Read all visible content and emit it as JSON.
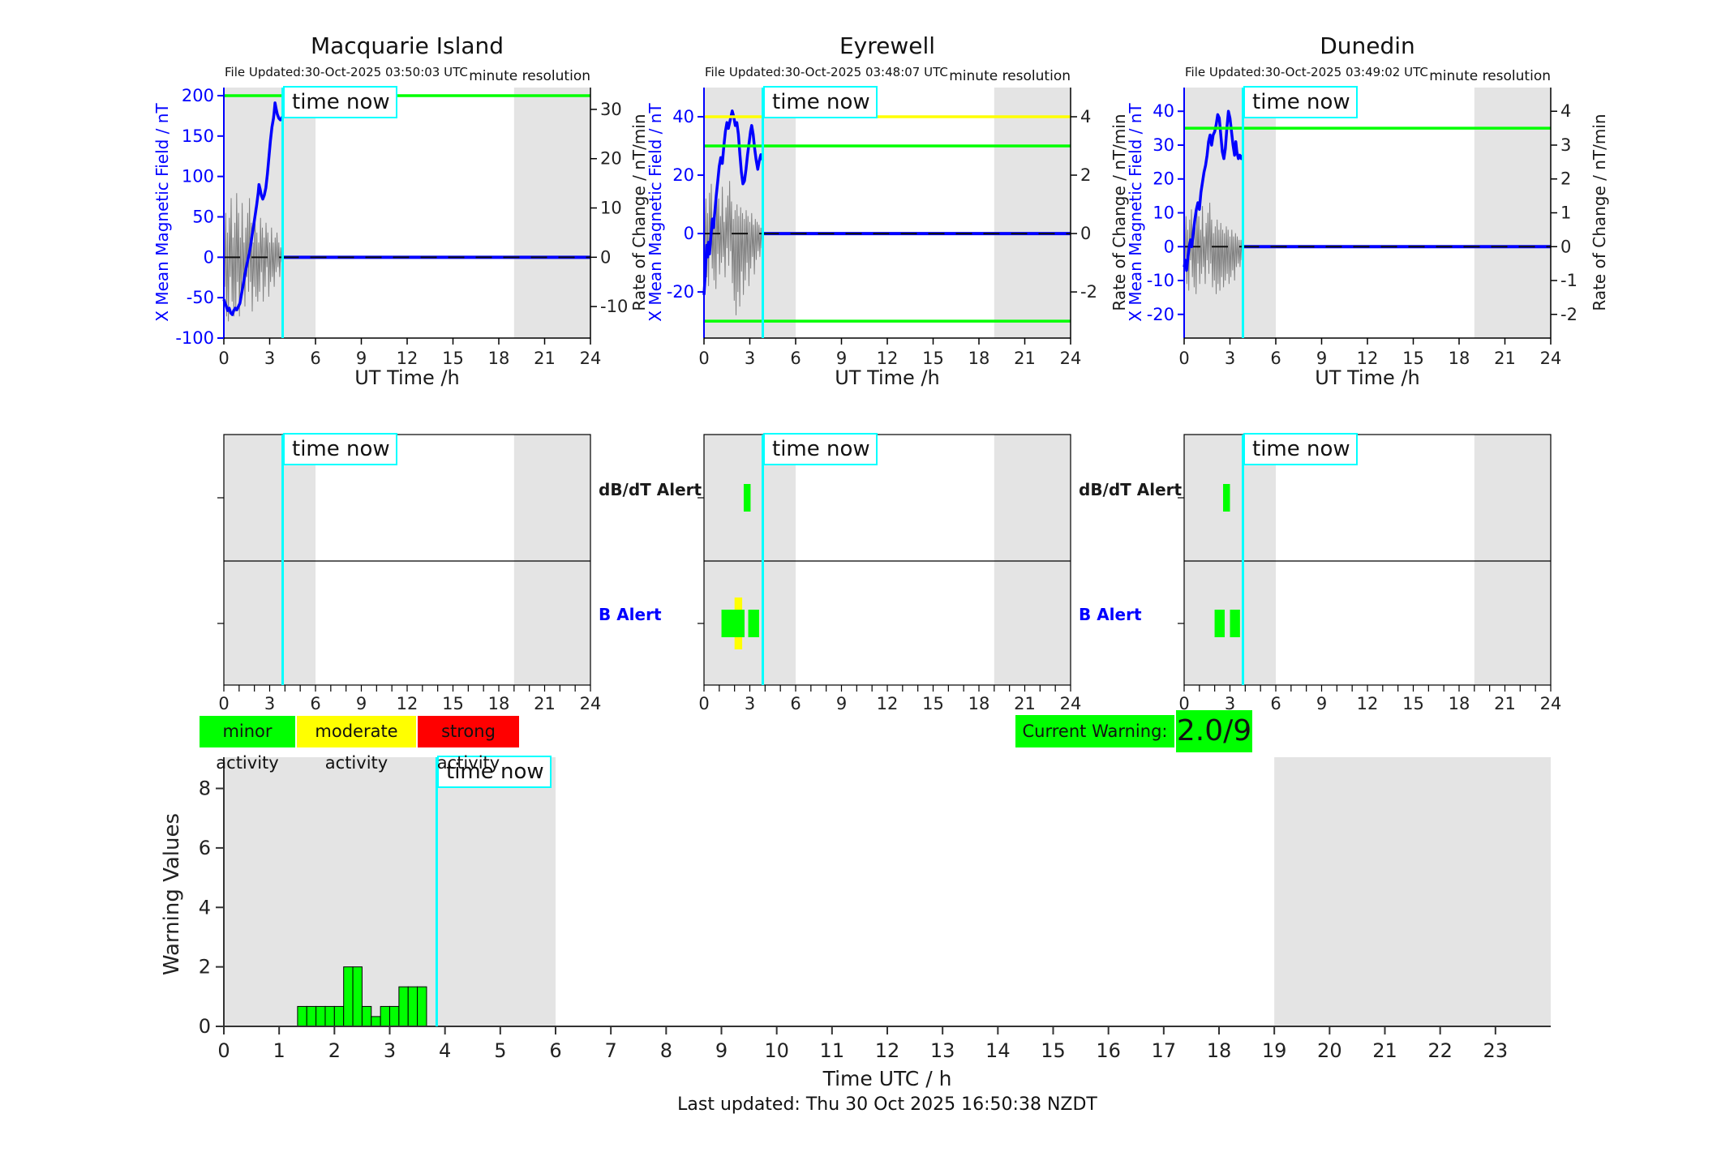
{
  "labels": {
    "time_now": "time now",
    "ut_time": "UT Time /h",
    "alert_dbdt": "dB/dT Alert",
    "alert_b": "B Alert",
    "last_updated": "Last updated: Thu 30 Oct 2025 16:50:38 NZDT"
  },
  "legend": {
    "minor": {
      "label": "minor activity",
      "color": "#00FF00"
    },
    "moderate": {
      "label": "moderate activity",
      "color": "#FFFF00"
    },
    "strong": {
      "label": "strong activity",
      "color": "#FF0000"
    }
  },
  "current_warning": {
    "label": "Current Warning:",
    "value": "2.0/9",
    "color": "#00FF00"
  },
  "colors": {
    "field_line": "#0000FF",
    "rate_line": "#808080",
    "band": "#E4E4E4",
    "time_now": "#00FFFF",
    "zero_dash": "#111111",
    "minor": "#00FF00",
    "moderate": "#FFFF00",
    "strong": "#FF0000"
  },
  "stations": [
    {
      "title": "Macquarie Island",
      "file_updated": "File Updated:30-Oct-2025 03:50:03 UTC",
      "resolution": "minute resolution",
      "ylabel_left": "X Mean Magnetic Field / nT",
      "ylabel_right": "Rate of Change / nT/min"
    },
    {
      "title": "Eyrewell",
      "file_updated": "File Updated:30-Oct-2025 03:48:07 UTC",
      "resolution": "minute resolution",
      "ylabel_left": "X Mean Magnetic Field / nT",
      "ylabel_right": "Rate of Change / nT/min"
    },
    {
      "title": "Dunedin",
      "file_updated": "File Updated:30-Oct-2025 03:49:02 UTC",
      "resolution": "minute resolution",
      "ylabel_left": "X Mean Magnetic Field / nT",
      "ylabel_right": "Rate of Change / nT/min"
    }
  ],
  "chart_data": [
    {
      "type": "line",
      "station": "Macquarie Island",
      "xlabel": "UT Time /h",
      "xlim": [
        0,
        24
      ],
      "xticks": [
        0,
        3,
        6,
        9,
        12,
        15,
        18,
        21,
        24
      ],
      "ylim": [
        -100,
        210
      ],
      "yticks_left": [
        200,
        150,
        100,
        50,
        0,
        -50,
        -100
      ],
      "yticks_right": [
        30,
        20,
        10,
        0,
        -10
      ],
      "right_to_left_factor": 6.1,
      "shading": [
        [
          0,
          6
        ],
        [
          19,
          24
        ]
      ],
      "time_now": 3.85,
      "thresholds": [
        {
          "value": 200,
          "color": "#00FF00"
        }
      ],
      "forecast_value": 0,
      "series_field_nT": [
        [
          0,
          -52
        ],
        [
          0.08,
          -57
        ],
        [
          0.15,
          -60
        ],
        [
          0.25,
          -66
        ],
        [
          0.35,
          -63
        ],
        [
          0.45,
          -69
        ],
        [
          0.55,
          -71
        ],
        [
          0.65,
          -66
        ],
        [
          0.75,
          -63
        ],
        [
          0.85,
          -65
        ],
        [
          0.95,
          -61
        ],
        [
          1.05,
          -57
        ],
        [
          1.15,
          -46
        ],
        [
          1.25,
          -36
        ],
        [
          1.35,
          -25
        ],
        [
          1.45,
          -14
        ],
        [
          1.55,
          -5
        ],
        [
          1.65,
          4
        ],
        [
          1.75,
          14
        ],
        [
          1.85,
          27
        ],
        [
          1.95,
          39
        ],
        [
          2.05,
          52
        ],
        [
          2.15,
          65
        ],
        [
          2.25,
          80
        ],
        [
          2.3,
          90
        ],
        [
          2.38,
          84
        ],
        [
          2.45,
          77
        ],
        [
          2.55,
          72
        ],
        [
          2.65,
          77
        ],
        [
          2.75,
          86
        ],
        [
          2.85,
          103
        ],
        [
          2.95,
          124
        ],
        [
          3.05,
          144
        ],
        [
          3.15,
          161
        ],
        [
          3.25,
          172
        ],
        [
          3.3,
          180
        ],
        [
          3.35,
          191
        ],
        [
          3.42,
          184
        ],
        [
          3.5,
          177
        ],
        [
          3.6,
          172
        ],
        [
          3.7,
          170
        ],
        [
          3.85,
          174
        ]
      ],
      "series_rate": {
        "t0": 0,
        "dt": 0.06,
        "v": [
          3,
          -6,
          9,
          -12,
          5,
          -13,
          8,
          -4,
          12,
          -9,
          4,
          -12,
          7,
          -11,
          13,
          -5,
          9,
          -12,
          4,
          -8,
          11,
          -6,
          3,
          -10,
          6,
          -4,
          9,
          -7,
          12,
          -5,
          7,
          -11,
          3,
          -6,
          10,
          -8,
          5,
          -9,
          3,
          -7,
          8,
          -3,
          6,
          -9,
          4,
          -6,
          7,
          -2,
          5,
          -8,
          3,
          -5,
          6,
          -4,
          3,
          -6,
          4,
          -3,
          5,
          -2,
          3,
          -4,
          2,
          -1
        ]
      }
    },
    {
      "type": "line",
      "station": "Eyrewell",
      "xlabel": "UT Time /h",
      "xlim": [
        0,
        24
      ],
      "xticks": [
        0,
        3,
        6,
        9,
        12,
        15,
        18,
        21,
        24
      ],
      "ylim": [
        -35.8,
        50
      ],
      "yticks_left": [
        40,
        20,
        0,
        -20
      ],
      "yticks_right": [
        4,
        2,
        0,
        -2
      ],
      "right_to_left_factor": 10,
      "shading": [
        [
          0,
          6
        ],
        [
          19,
          24
        ]
      ],
      "time_now": 3.85,
      "thresholds": [
        {
          "value": 40,
          "color": "#FFFF00"
        },
        {
          "value": 30,
          "color": "#00FF00"
        },
        {
          "value": -30,
          "color": "#00FF00"
        }
      ],
      "forecast_value": 0,
      "series_field_nT": [
        [
          0,
          -21
        ],
        [
          0.06,
          -16
        ],
        [
          0.12,
          -9
        ],
        [
          0.18,
          -4
        ],
        [
          0.25,
          -8
        ],
        [
          0.3,
          -3
        ],
        [
          0.36,
          -7
        ],
        [
          0.45,
          -1
        ],
        [
          0.55,
          5
        ],
        [
          0.62,
          2
        ],
        [
          0.7,
          7
        ],
        [
          0.8,
          13
        ],
        [
          0.9,
          18
        ],
        [
          1,
          23
        ],
        [
          1.1,
          26
        ],
        [
          1.2,
          24
        ],
        [
          1.3,
          30
        ],
        [
          1.4,
          35
        ],
        [
          1.5,
          38
        ],
        [
          1.6,
          36
        ],
        [
          1.72,
          39
        ],
        [
          1.85,
          42
        ],
        [
          1.95,
          40
        ],
        [
          2.05,
          37
        ],
        [
          2.15,
          38
        ],
        [
          2.25,
          34
        ],
        [
          2.35,
          27
        ],
        [
          2.45,
          21
        ],
        [
          2.55,
          17
        ],
        [
          2.65,
          18
        ],
        [
          2.75,
          22
        ],
        [
          2.85,
          27
        ],
        [
          2.95,
          31
        ],
        [
          3.05,
          35
        ],
        [
          3.12,
          37
        ],
        [
          3.22,
          34
        ],
        [
          3.32,
          29
        ],
        [
          3.42,
          25
        ],
        [
          3.52,
          22
        ],
        [
          3.62,
          25
        ],
        [
          3.72,
          27
        ],
        [
          3.85,
          25
        ]
      ],
      "series_rate": {
        "t0": 0,
        "dt": 0.06,
        "v": [
          0.3,
          -0.8,
          1.2,
          -1.5,
          0.7,
          -1.8,
          1.4,
          -0.6,
          1.7,
          -1.2,
          0.5,
          -1.6,
          1,
          -1.9,
          1.5,
          -0.7,
          1.2,
          -1.4,
          0.6,
          -1,
          1.6,
          -0.8,
          0.4,
          -1.5,
          0.9,
          -0.5,
          1.3,
          -1.1,
          1.8,
          -0.6,
          1.1,
          -1.7,
          0.5,
          -2.3,
          0.8,
          -2.8,
          1,
          -2,
          0.6,
          -2.5,
          0.9,
          -1.3,
          0.7,
          -2.1,
          0.5,
          -1.6,
          0.8,
          -1,
          0.6,
          -1.8,
          0.4,
          -1.2,
          0.7,
          -0.8,
          0.3,
          -1.4,
          0.5,
          -0.9,
          0.4,
          -0.6,
          0.3,
          -0.8,
          0.2,
          -0.5
        ]
      }
    },
    {
      "type": "line",
      "station": "Dunedin",
      "xlabel": "UT Time /h",
      "xlim": [
        0,
        24
      ],
      "xticks": [
        0,
        3,
        6,
        9,
        12,
        15,
        18,
        21,
        24
      ],
      "ylim": [
        -27,
        47
      ],
      "yticks_left": [
        40,
        30,
        20,
        10,
        0,
        -10,
        -20
      ],
      "yticks_right": [
        4,
        3,
        2,
        1,
        0,
        -1,
        -2
      ],
      "right_to_left_factor": 10,
      "shading": [
        [
          0,
          6
        ],
        [
          19,
          24
        ]
      ],
      "time_now": 3.85,
      "thresholds": [
        {
          "value": 35,
          "color": "#00FF00"
        }
      ],
      "forecast_value": 0,
      "series_field_nT": [
        [
          0,
          -6
        ],
        [
          0.08,
          -4
        ],
        [
          0.16,
          -7
        ],
        [
          0.25,
          -3
        ],
        [
          0.33,
          0
        ],
        [
          0.42,
          2
        ],
        [
          0.5,
          0
        ],
        [
          0.6,
          4
        ],
        [
          0.7,
          8
        ],
        [
          0.8,
          11
        ],
        [
          0.9,
          13
        ],
        [
          1,
          11
        ],
        [
          1.1,
          16
        ],
        [
          1.2,
          19
        ],
        [
          1.3,
          22
        ],
        [
          1.4,
          24
        ],
        [
          1.5,
          27
        ],
        [
          1.6,
          31
        ],
        [
          1.7,
          33
        ],
        [
          1.8,
          30
        ],
        [
          1.9,
          33
        ],
        [
          2,
          34
        ],
        [
          2.1,
          36
        ],
        [
          2.2,
          39
        ],
        [
          2.3,
          38
        ],
        [
          2.4,
          33
        ],
        [
          2.5,
          28
        ],
        [
          2.6,
          26
        ],
        [
          2.7,
          29
        ],
        [
          2.8,
          35
        ],
        [
          2.9,
          40
        ],
        [
          3,
          38
        ],
        [
          3.1,
          34
        ],
        [
          3.2,
          30
        ],
        [
          3.3,
          27
        ],
        [
          3.38,
          31
        ],
        [
          3.45,
          28
        ],
        [
          3.55,
          26
        ],
        [
          3.65,
          27
        ],
        [
          3.75,
          26
        ],
        [
          3.85,
          27
        ]
      ],
      "series_rate": {
        "t0": 0,
        "dt": 0.06,
        "v": [
          0.2,
          -0.6,
          0.9,
          -1.1,
          0.5,
          -1.3,
          0.8,
          -0.4,
          1.1,
          -0.9,
          0.4,
          -1.2,
          0.7,
          -1.4,
          1,
          -0.5,
          0.9,
          -1.1,
          0.5,
          -0.8,
          1.2,
          -0.6,
          0.3,
          -1.1,
          0.7,
          -0.4,
          1,
          -0.8,
          1.3,
          -0.5,
          0.8,
          -1.2,
          0.4,
          -1,
          0.6,
          -1.4,
          0.8,
          -1.1,
          0.5,
          -1.3,
          0.7,
          -0.9,
          0.5,
          -1.2,
          0.4,
          -1,
          0.6,
          -0.8,
          0.5,
          -1.1,
          0.3,
          -0.9,
          0.5,
          -0.7,
          0.3,
          -1,
          0.4,
          -0.6,
          0.3,
          -0.5,
          0.2,
          -0.6,
          0.2,
          -0.4
        ]
      }
    },
    {
      "type": "bar",
      "name": "warning-values",
      "ylabel": "Warning Values",
      "xlabel": "Time UTC / h",
      "xlim": [
        0,
        24
      ],
      "xticks": [
        0,
        1,
        2,
        3,
        4,
        5,
        6,
        7,
        8,
        9,
        10,
        11,
        12,
        13,
        14,
        15,
        16,
        17,
        18,
        19,
        20,
        21,
        22,
        23
      ],
      "ylim": [
        0,
        9.05
      ],
      "yticks": [
        0,
        2,
        4,
        6,
        8
      ],
      "shading": [
        [
          0,
          6
        ],
        [
          19,
          24
        ]
      ],
      "time_now": 3.85,
      "bar_start": 1.3333,
      "bar_width": 0.16667,
      "bar_color": "#00FF00",
      "values": [
        0.67,
        0.67,
        0.67,
        0.67,
        0.67,
        2,
        2,
        0.67,
        0.33,
        0.67,
        0.67,
        1.33,
        1.33,
        1.33
      ]
    }
  ],
  "alert_panels": {
    "xlim": [
      0,
      24
    ],
    "xticks_labeled": [
      0,
      3,
      6,
      9,
      12,
      15,
      18,
      21,
      24
    ],
    "shading": [
      [
        0,
        6
      ],
      [
        19,
        24
      ]
    ],
    "time_now": 3.85,
    "rows": [
      "dB/dT Alert",
      "B Alert"
    ],
    "panels": [
      {
        "station": "Macquarie Island",
        "dbdt_bars": [],
        "b_bars": []
      },
      {
        "station": "Eyrewell",
        "dbdt_bars": [
          {
            "t0": 2.6,
            "t1": 3.05,
            "color": "#00FF00"
          }
        ],
        "b_bars": [
          {
            "t0": 2.0,
            "t1": 2.5,
            "color": "#FFFF00",
            "tall": true
          },
          {
            "t0": 1.15,
            "t1": 2.65,
            "color": "#00FF00"
          },
          {
            "t0": 2.9,
            "t1": 3.6,
            "color": "#00FF00"
          }
        ]
      },
      {
        "station": "Dunedin",
        "dbdt_bars": [
          {
            "t0": 2.55,
            "t1": 3.0,
            "color": "#00FF00"
          }
        ],
        "b_bars": [
          {
            "t0": 2.0,
            "t1": 2.65,
            "color": "#00FF00"
          },
          {
            "t0": 3.0,
            "t1": 3.65,
            "color": "#00FF00"
          }
        ]
      }
    ]
  }
}
